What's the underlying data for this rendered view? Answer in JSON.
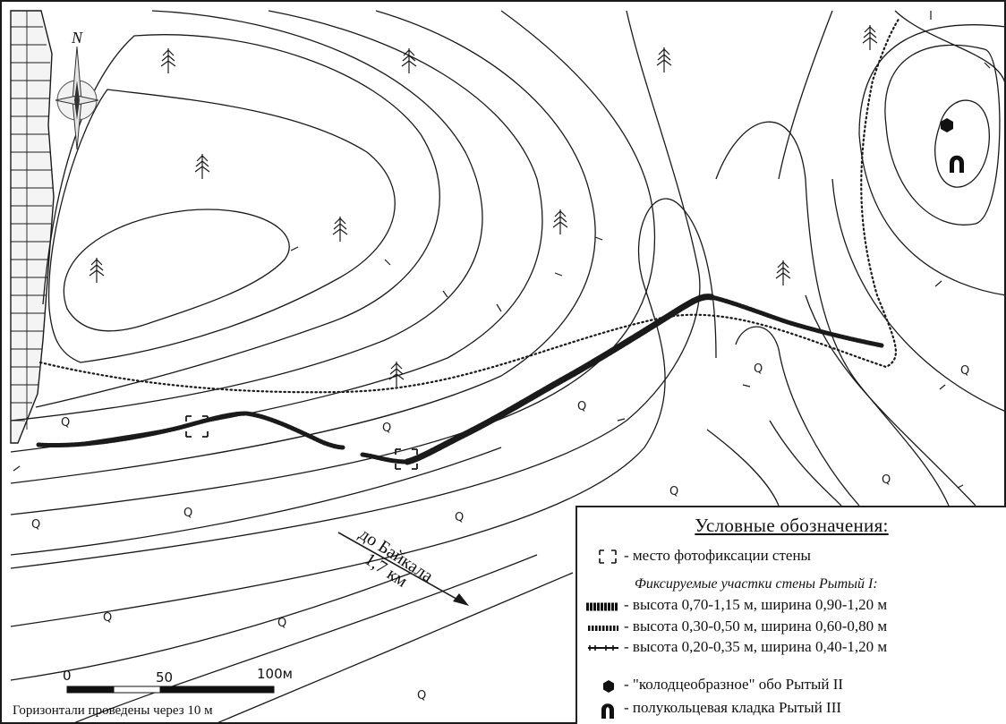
{
  "legend": {
    "title": "Условные обозначения:",
    "photo_place": "- место фотофиксации стены",
    "sections_title": "Фиксируемые участки стены Рытый I:",
    "section_1": "- высота 0,70-1,15 м, ширина 0,90-1,20 м",
    "section_2": "- высота 0,30-0,50 м, ширина 0,60-0,80 м",
    "section_3": "- высота 0,20-0,35 м, ширина 0,40-1,20 м",
    "obo": "- \"колодцеобразное\" обо Рытый II",
    "masonry": "- полукольцевая кладка Рытый III"
  },
  "direction": {
    "label": "до Байкала",
    "distance": "1,7 км"
  },
  "scale": {
    "zero": "0",
    "mid": "50",
    "end": "100м",
    "caption": "Горизонтали проведены через 10 м"
  },
  "north_letter": "N",
  "deposit_symbol": "Q",
  "colors": {
    "ink": "#1a1a1a",
    "paper": "#ffffff"
  }
}
